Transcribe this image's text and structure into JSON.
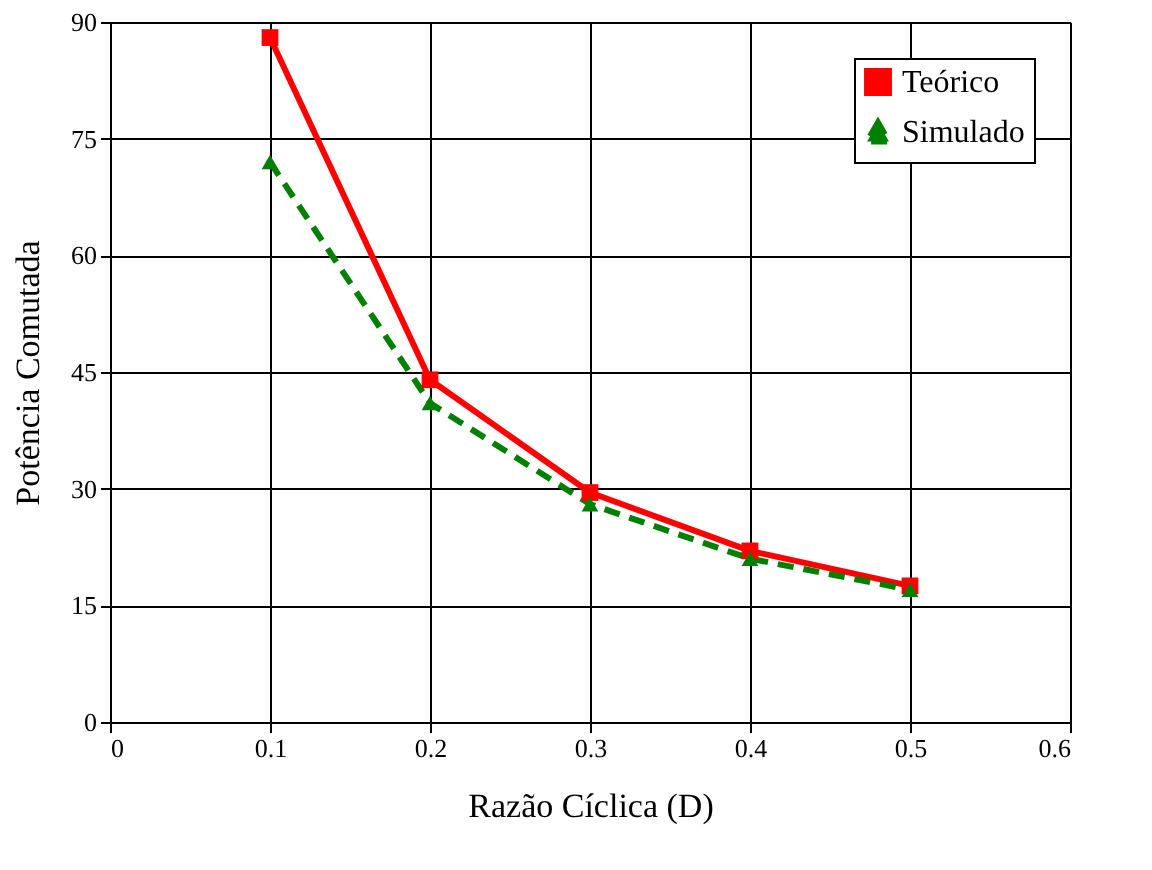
{
  "chart_data": {
    "type": "line",
    "xlabel": "Razão Cíclica (D)",
    "ylabel": "Potência Comutada",
    "x": [
      0.1,
      0.2,
      0.3,
      0.4,
      0.5
    ],
    "series": [
      {
        "name": "Teórico",
        "color": "#ff0000",
        "values": [
          88,
          44,
          29.5,
          22,
          17.5
        ],
        "marker": "square",
        "line_style": "solid"
      },
      {
        "name": "Simulado",
        "color": "#008000",
        "values": [
          72,
          41,
          28,
          21,
          17
        ],
        "marker": "triangle",
        "line_style": "dashed"
      }
    ],
    "xlim": [
      0,
      0.6
    ],
    "xticks": [
      0,
      0.1,
      0.2,
      0.3,
      0.4,
      0.5,
      0.6
    ],
    "ylim": [
      0,
      90
    ],
    "yticks": [
      0,
      15,
      30,
      45,
      60,
      75,
      90
    ],
    "grid": true,
    "legend": "top right"
  }
}
